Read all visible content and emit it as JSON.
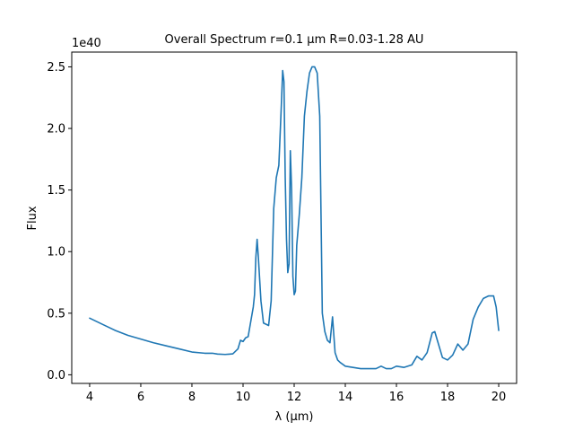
{
  "chart_data": {
    "type": "line",
    "title": "Overall Spectrum r=0.1 μm R=0.03-1.28 AU",
    "xlabel": "λ (μm)",
    "ylabel": "Flux",
    "y_offset_label": "1e40",
    "xlim": [
      3.3,
      20.7
    ],
    "ylim": [
      -0.07,
      2.62
    ],
    "x_ticks": [
      4,
      6,
      8,
      10,
      12,
      14,
      16,
      18,
      20
    ],
    "x_tick_labels": [
      "4",
      "6",
      "8",
      "10",
      "12",
      "14",
      "16",
      "18",
      "20"
    ],
    "y_ticks": [
      0.0,
      0.5,
      1.0,
      1.5,
      2.0,
      2.5
    ],
    "y_tick_labels": [
      "0.0",
      "0.5",
      "1.0",
      "1.5",
      "2.0",
      "2.5"
    ],
    "grid": false,
    "series": [
      {
        "color": "#1f77b4",
        "x": [
          4.0,
          4.5,
          5.0,
          5.5,
          6.0,
          6.5,
          7.0,
          7.5,
          8.0,
          8.5,
          8.8,
          9.0,
          9.3,
          9.6,
          9.8,
          9.9,
          10.0,
          10.1,
          10.2,
          10.3,
          10.4,
          10.45,
          10.5,
          10.55,
          10.6,
          10.7,
          10.8,
          11.0,
          11.1,
          11.2,
          11.3,
          11.4,
          11.5,
          11.55,
          11.6,
          11.65,
          11.7,
          11.75,
          11.8,
          11.85,
          11.9,
          11.95,
          12.0,
          12.05,
          12.1,
          12.2,
          12.3,
          12.4,
          12.5,
          12.6,
          12.7,
          12.8,
          12.9,
          13.0,
          13.05,
          13.1,
          13.2,
          13.3,
          13.4,
          13.5,
          13.6,
          13.7,
          13.8,
          14.0,
          14.3,
          14.6,
          15.0,
          15.2,
          15.4,
          15.6,
          15.8,
          16.0,
          16.3,
          16.6,
          16.8,
          17.0,
          17.2,
          17.4,
          17.5,
          17.6,
          17.8,
          18.0,
          18.2,
          18.4,
          18.6,
          18.8,
          19.0,
          19.2,
          19.4,
          19.6,
          19.8,
          19.9,
          20.0
        ],
        "y": [
          0.46,
          0.41,
          0.36,
          0.32,
          0.29,
          0.26,
          0.235,
          0.21,
          0.185,
          0.175,
          0.175,
          0.168,
          0.165,
          0.17,
          0.21,
          0.28,
          0.27,
          0.3,
          0.31,
          0.43,
          0.55,
          0.65,
          0.95,
          1.1,
          0.95,
          0.6,
          0.42,
          0.4,
          0.6,
          1.35,
          1.6,
          1.7,
          2.2,
          2.47,
          2.38,
          1.6,
          1.1,
          0.83,
          0.9,
          1.82,
          1.5,
          0.8,
          0.65,
          0.68,
          1.05,
          1.3,
          1.6,
          2.1,
          2.3,
          2.45,
          2.5,
          2.5,
          2.45,
          2.1,
          1.3,
          0.5,
          0.35,
          0.28,
          0.26,
          0.47,
          0.18,
          0.12,
          0.1,
          0.07,
          0.06,
          0.05,
          0.05,
          0.05,
          0.07,
          0.05,
          0.05,
          0.07,
          0.06,
          0.08,
          0.15,
          0.12,
          0.18,
          0.34,
          0.35,
          0.28,
          0.14,
          0.12,
          0.16,
          0.25,
          0.2,
          0.25,
          0.45,
          0.55,
          0.62,
          0.64,
          0.64,
          0.55,
          0.36
        ]
      }
    ]
  }
}
